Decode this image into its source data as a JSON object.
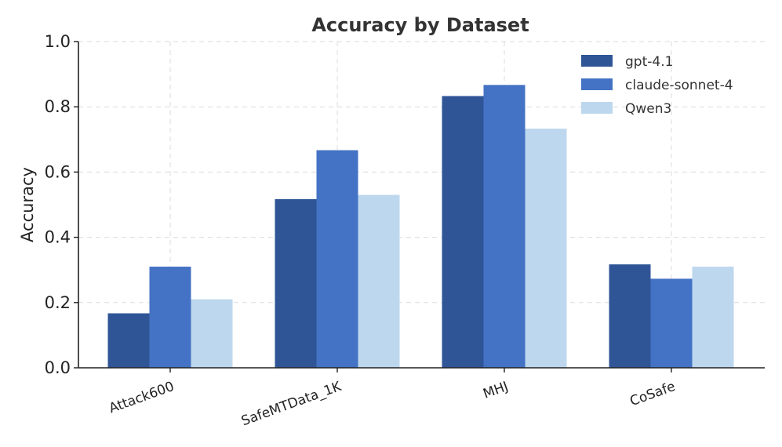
{
  "chart_data": {
    "type": "bar",
    "title": "Accuracy by Dataset",
    "xlabel": "",
    "ylabel": "Accuracy",
    "ylim": [
      0,
      1.0
    ],
    "yticks": [
      "0.0",
      "0.2",
      "0.4",
      "0.6",
      "0.8",
      "1.0"
    ],
    "grid": true,
    "legend_position": "top-right",
    "categories": [
      "Attack600",
      "SafeMTData_1K",
      "MHJ",
      "CoSafe"
    ],
    "series": [
      {
        "name": "gpt-4.1",
        "color": "#2F5597",
        "values": [
          0.167,
          0.517,
          0.833,
          0.317
        ]
      },
      {
        "name": "claude-sonnet-4",
        "color": "#4472C4",
        "values": [
          0.31,
          0.667,
          0.867,
          0.273
        ]
      },
      {
        "name": "Qwen3",
        "color": "#BDD7EE",
        "values": [
          0.21,
          0.53,
          0.733,
          0.31
        ]
      }
    ]
  }
}
